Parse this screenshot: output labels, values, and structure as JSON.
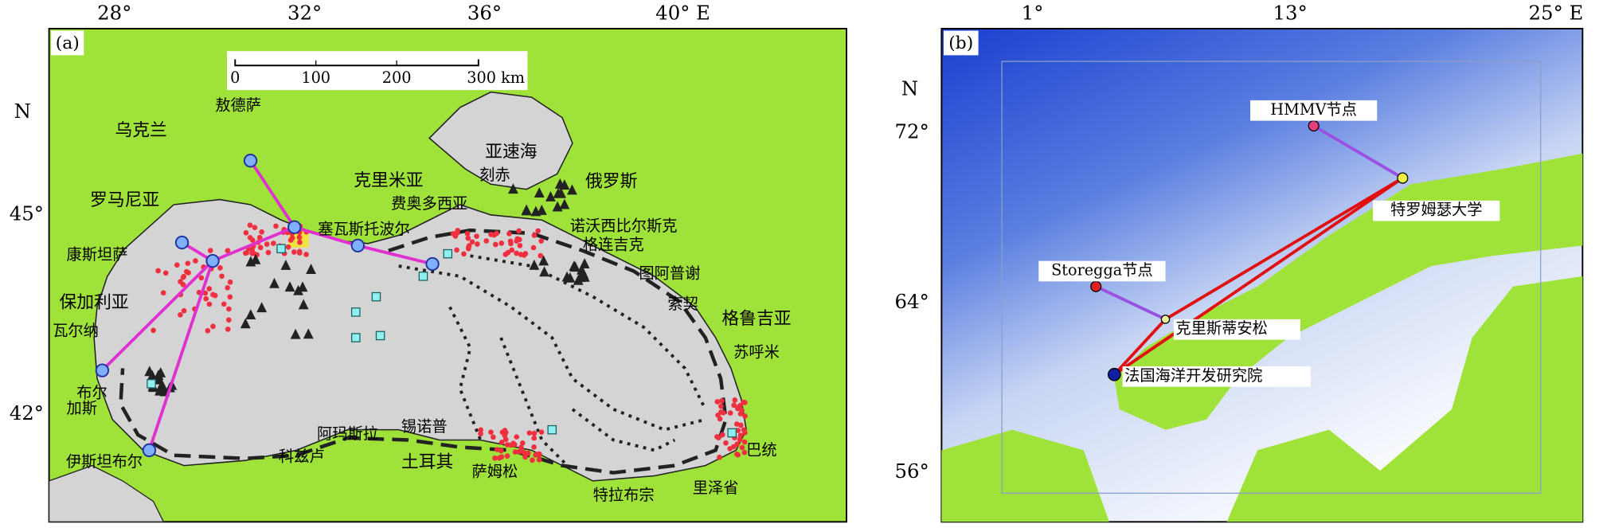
{
  "panels": [
    {
      "label": "(a)",
      "lon_labels": [
        "28°",
        "32°",
        "36°",
        "40° E"
      ],
      "lat_labels": [
        "N",
        "45°",
        "42°"
      ],
      "scale_labels": [
        "0",
        "100",
        "200",
        "300 km"
      ],
      "places": [
        "敖德萨",
        "乌克兰",
        "罗马尼亚",
        "克里米亚",
        "亚速海",
        "刻赤",
        "俄罗斯",
        "费奥多西亚",
        "塞瓦斯托波尔",
        "诺沃西比尔斯克",
        "格连吉克",
        "康斯坦萨",
        "图阿普谢",
        "保加利亚",
        "索契",
        "格鲁吉亚",
        "瓦尔纳",
        "苏呼米",
        "布尔",
        "加斯",
        "阿玛斯拉",
        "锡诺普",
        "科兹卢",
        "土耳其",
        "萨姆松",
        "巴统",
        "伊斯坦布尔",
        "特拉布宗",
        "里泽省"
      ]
    },
    {
      "label": "(b)",
      "lon_labels": [
        "1°",
        "13°",
        "25° E"
      ],
      "lat_labels": [
        "N",
        "72°",
        "64°",
        "56°"
      ],
      "places": [
        "HMMV节点",
        "特罗姆瑟大学",
        "Storegga节点",
        "克里斯蒂安松",
        "法国海洋开发研究院"
      ]
    }
  ]
}
